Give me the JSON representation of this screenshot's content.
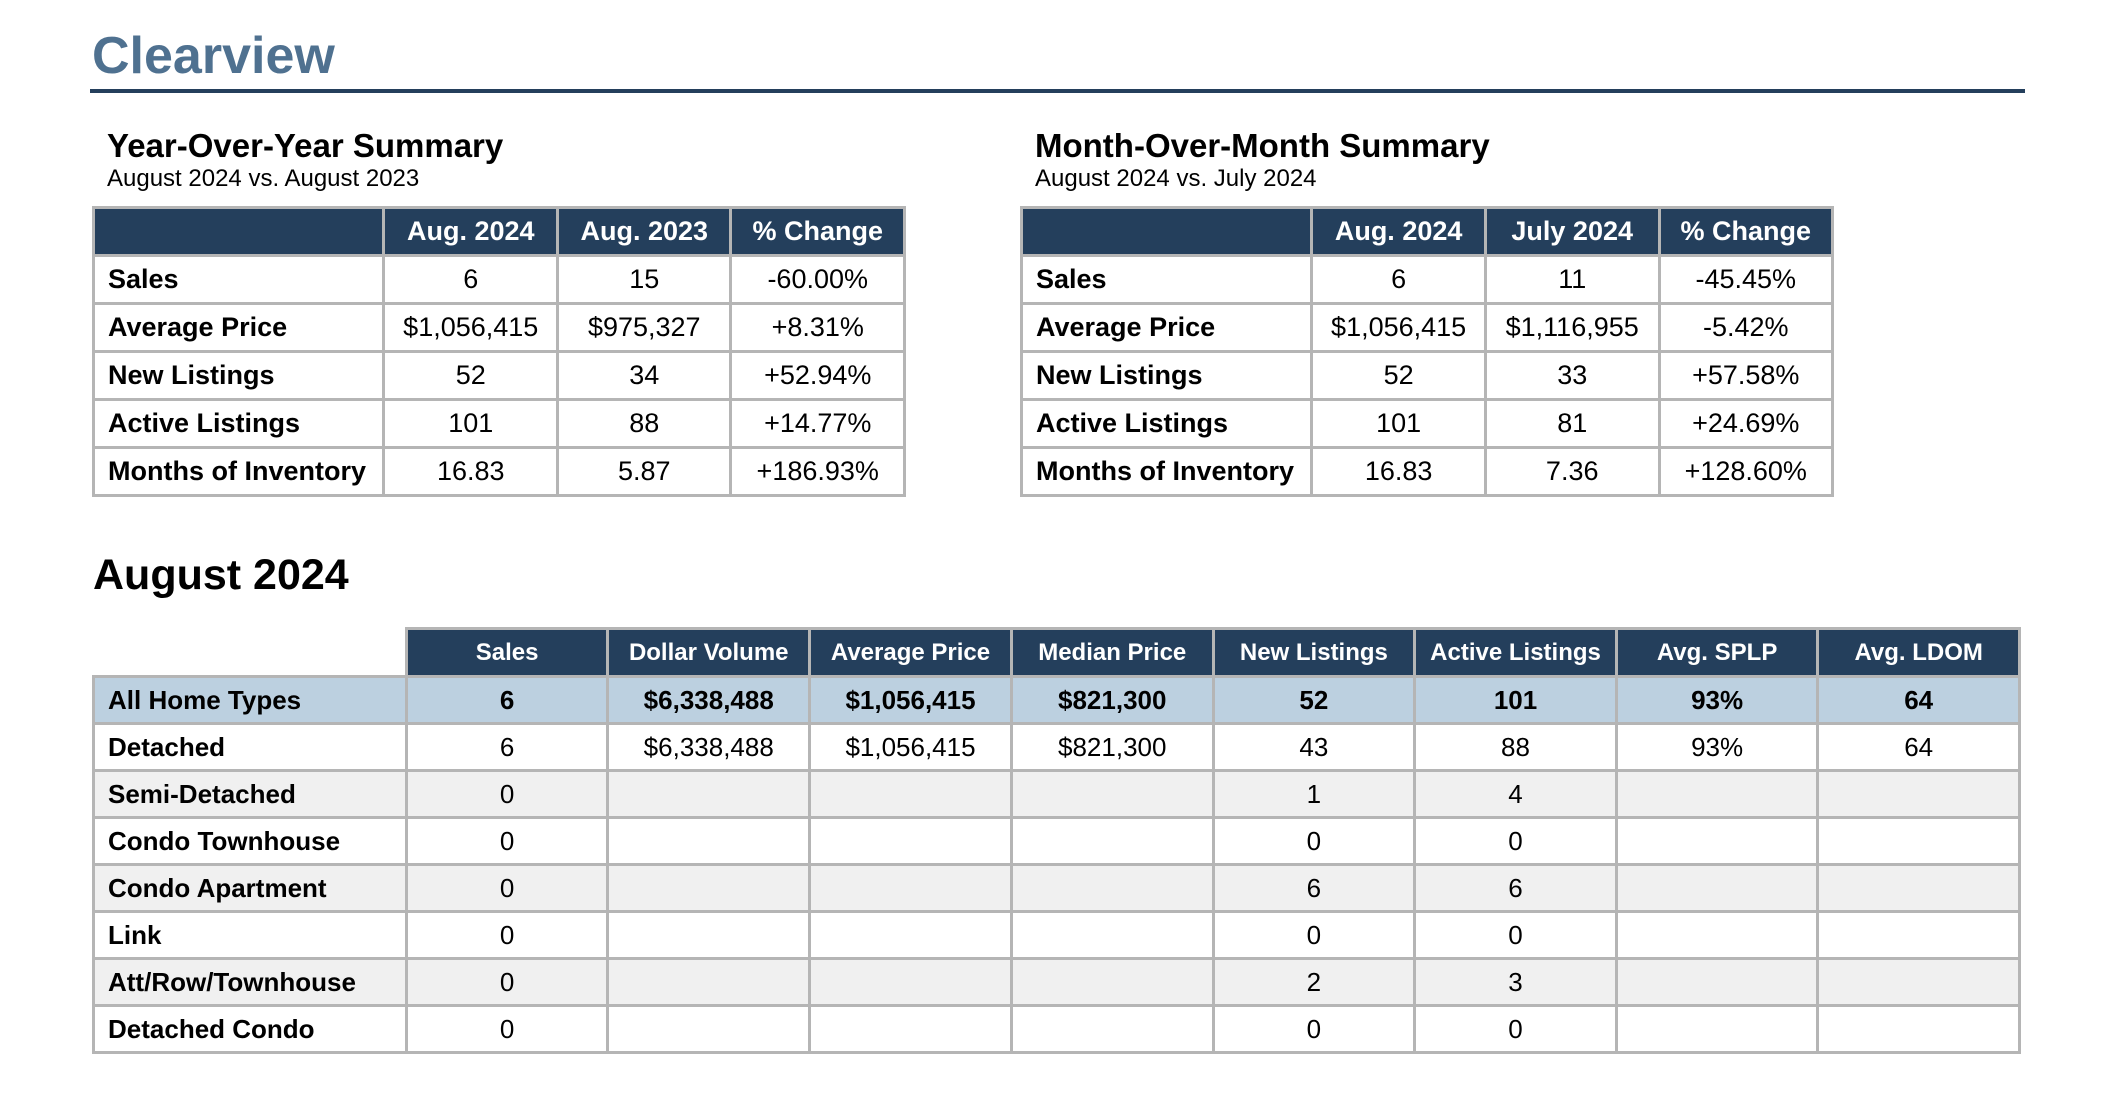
{
  "title": "Clearview",
  "yoy": {
    "heading": "Year-Over-Year Summary",
    "sub": "August 2024 vs. August 2023",
    "columns": [
      "Aug. 2024",
      "Aug. 2023",
      "% Change"
    ],
    "rows": [
      {
        "label": "Sales",
        "values": [
          "6",
          "15",
          "-60.00%"
        ]
      },
      {
        "label": "Average Price",
        "values": [
          "$1,056,415",
          "$975,327",
          "+8.31%"
        ]
      },
      {
        "label": "New Listings",
        "values": [
          "52",
          "34",
          "+52.94%"
        ]
      },
      {
        "label": "Active Listings",
        "values": [
          "101",
          "88",
          "+14.77%"
        ]
      },
      {
        "label": "Months of Inventory",
        "values": [
          "16.83",
          "5.87",
          "+186.93%"
        ]
      }
    ]
  },
  "mom": {
    "heading": "Month-Over-Month Summary",
    "sub": "August 2024 vs. July 2024",
    "columns": [
      "Aug. 2024",
      "July 2024",
      "% Change"
    ],
    "rows": [
      {
        "label": "Sales",
        "values": [
          "6",
          "11",
          "-45.45%"
        ]
      },
      {
        "label": "Average Price",
        "values": [
          "$1,056,415",
          "$1,116,955",
          "-5.42%"
        ]
      },
      {
        "label": "New Listings",
        "values": [
          "52",
          "33",
          "+57.58%"
        ]
      },
      {
        "label": "Active Listings",
        "values": [
          "101",
          "81",
          "+24.69%"
        ]
      },
      {
        "label": "Months of Inventory",
        "values": [
          "16.83",
          "7.36",
          "+128.60%"
        ]
      }
    ]
  },
  "detail": {
    "heading": "August 2024",
    "columns": [
      "Sales",
      "Dollar Volume",
      "Average Price",
      "Median Price",
      "New Listings",
      "Active Listings",
      "Avg. SPLP",
      "Avg. LDOM"
    ],
    "rows": [
      {
        "label": "All Home Types",
        "values": [
          "6",
          "$6,338,488",
          "$1,056,415",
          "$821,300",
          "52",
          "101",
          "93%",
          "64"
        ]
      },
      {
        "label": "Detached",
        "values": [
          "6",
          "$6,338,488",
          "$1,056,415",
          "$821,300",
          "43",
          "88",
          "93%",
          "64"
        ]
      },
      {
        "label": "Semi-Detached",
        "values": [
          "0",
          "",
          "",
          "",
          "1",
          "4",
          "",
          ""
        ]
      },
      {
        "label": "Condo Townhouse",
        "values": [
          "0",
          "",
          "",
          "",
          "0",
          "0",
          "",
          ""
        ]
      },
      {
        "label": "Condo Apartment",
        "values": [
          "0",
          "",
          "",
          "",
          "6",
          "6",
          "",
          ""
        ]
      },
      {
        "label": "Link",
        "values": [
          "0",
          "",
          "",
          "",
          "0",
          "0",
          "",
          ""
        ]
      },
      {
        "label": "Att/Row/Townhouse",
        "values": [
          "0",
          "",
          "",
          "",
          "2",
          "3",
          "",
          ""
        ]
      },
      {
        "label": "Detached Condo",
        "values": [
          "0",
          "",
          "",
          "",
          "0",
          "0",
          "",
          ""
        ]
      }
    ]
  }
}
